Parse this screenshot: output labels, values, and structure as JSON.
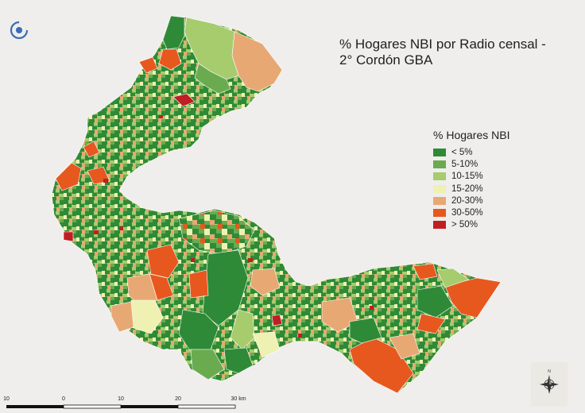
{
  "title": {
    "line1": "% Hogares NBI por Radio censal -",
    "line2": "2° Cordón GBA"
  },
  "legend": {
    "title": "% Hogares NBI",
    "items": [
      {
        "label": "< 5%",
        "color": "#2f8a38"
      },
      {
        "label": "5-10%",
        "color": "#6aab4f"
      },
      {
        "label": "10-15%",
        "color": "#a6cc6e"
      },
      {
        "label": "15-20%",
        "color": "#eef1b2"
      },
      {
        "label": "20-30%",
        "color": "#e8a873"
      },
      {
        "label": "30-50%",
        "color": "#e7581e"
      },
      {
        "label": "> 50%",
        "color": "#bf1f22"
      }
    ]
  },
  "scalebar": {
    "ticks": [
      "10",
      "0",
      "10",
      "20",
      "30 km"
    ]
  },
  "icons": {
    "logo": "org-logo-icon",
    "north_arrow": "compass-rose-icon"
  }
}
